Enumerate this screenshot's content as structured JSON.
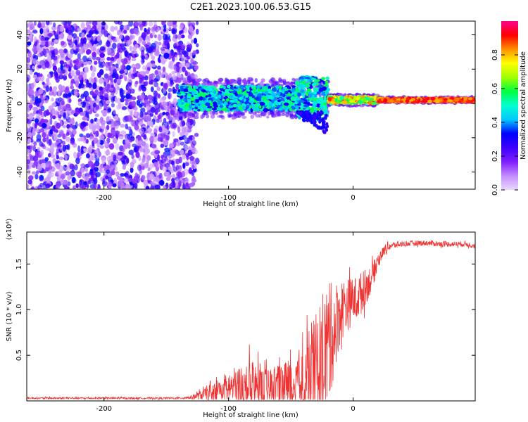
{
  "figure_title": "C2E1.2023.100.06.53.G15",
  "chart_data": [
    {
      "type": "heatmap",
      "xlabel": "Height of straight line (km)",
      "ylabel": "Frequency (Hz)",
      "xlim": [
        -262,
        98
      ],
      "ylim": [
        -50,
        48
      ],
      "x_ticks": [
        -200,
        -100,
        0
      ],
      "y_ticks": [
        -40,
        -20,
        0,
        20,
        40
      ],
      "grid": false,
      "colorbar": {
        "label": "Normalized spectral amplitude",
        "range": [
          0.0,
          1.0
        ],
        "ticks": [
          0.0,
          0.2,
          0.4,
          0.6,
          0.8
        ],
        "colormap": [
          "#e8d9ff",
          "#c58cff",
          "#7f1fff",
          "#3e00ff",
          "#0000ff",
          "#00c8ff",
          "#00ffd0",
          "#00ff40",
          "#a0ff00",
          "#ffff00",
          "#ff9000",
          "#ff0000",
          "#ff0090"
        ]
      },
      "regions": [
        {
          "x_range": [
            -262,
            -125
          ],
          "freq_range": [
            -50,
            48
          ],
          "amplitude_range": [
            0.05,
            0.35
          ],
          "description_value": "broadband noise"
        },
        {
          "x_range": [
            -140,
            -20
          ],
          "freq_center": 3,
          "freq_width": 14,
          "amplitude_range": [
            0.3,
            0.6
          ]
        },
        {
          "x_range": [
            -20,
            20
          ],
          "freq_center": 2,
          "freq_width": 4,
          "amplitude_range": [
            0.5,
            0.9
          ]
        },
        {
          "x_range": [
            20,
            98
          ],
          "freq_center": 2,
          "freq_width": 2,
          "amplitude_range": [
            0.8,
            0.95
          ]
        }
      ]
    },
    {
      "type": "line",
      "xlabel": "Height of straight line (km)",
      "ylabel": "SNR (10 * v/v)",
      "y_multiplier": "(x10⁴)",
      "xlim": [
        -262,
        98
      ],
      "ylim": [
        0,
        1.85
      ],
      "x_ticks": [
        -200,
        -100,
        0
      ],
      "y_ticks": [
        0.5,
        1.0,
        1.5
      ],
      "grid": false,
      "color": "#ee3333",
      "series": [
        {
          "x": [
            -262,
            -240,
            -220,
            -200,
            -180,
            -160,
            -140,
            -130,
            -120,
            -110,
            -100,
            -90,
            -80,
            -70,
            -60,
            -50,
            -40,
            -30,
            -25,
            -20,
            -15,
            -10,
            -5,
            0,
            5,
            10,
            15,
            20,
            25,
            30,
            40,
            50,
            60,
            70,
            80,
            90,
            98
          ],
          "values": [
            0.03,
            0.03,
            0.03,
            0.03,
            0.03,
            0.03,
            0.03,
            0.04,
            0.07,
            0.12,
            0.15,
            0.16,
            0.18,
            0.16,
            0.17,
            0.19,
            0.22,
            0.35,
            0.5,
            0.6,
            0.8,
            1.0,
            1.05,
            1.1,
            1.15,
            1.25,
            1.35,
            1.55,
            1.65,
            1.7,
            1.72,
            1.73,
            1.73,
            1.72,
            1.72,
            1.72,
            1.7
          ],
          "noise_amplitude": [
            0.01,
            0.01,
            0.01,
            0.01,
            0.01,
            0.01,
            0.01,
            0.02,
            0.06,
            0.12,
            0.18,
            0.25,
            0.3,
            0.2,
            0.22,
            0.3,
            0.4,
            0.6,
            0.7,
            0.7,
            0.5,
            0.35,
            0.3,
            0.25,
            0.25,
            0.2,
            0.15,
            0.08,
            0.05,
            0.04,
            0.03,
            0.03,
            0.03,
            0.03,
            0.03,
            0.03,
            0.03
          ]
        }
      ]
    }
  ]
}
